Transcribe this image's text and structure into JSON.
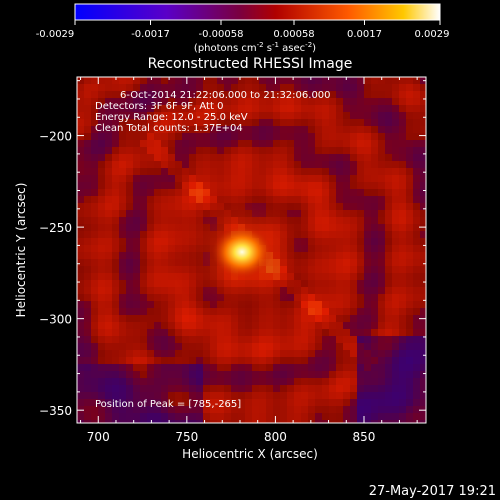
{
  "colorbar": {
    "ticks": [
      "-0.0029",
      "-0.0017",
      "-0.00058",
      "0.00058",
      "0.0017",
      "0.0029"
    ],
    "units_main": "(photons cm",
    "units_exp1": "-2",
    "units_mid": " s",
    "units_exp2": "-1",
    "units_tail": " asec",
    "units_exp3": "-2",
    "units_close": ")"
  },
  "chart_data": {
    "type": "heatmap",
    "title": "Reconstructed RHESSI Image",
    "xlabel": "Heliocentric X (arcsec)",
    "ylabel": "Heliocentric Y (arcsec)",
    "xlim": [
      688,
      885
    ],
    "ylim": [
      -357,
      -168
    ],
    "xticks": [
      700,
      750,
      800,
      850
    ],
    "yticks": [
      -200,
      -250,
      -300,
      -350
    ],
    "peak": {
      "x": 785,
      "y": -265
    },
    "color_range": [
      -0.0029,
      0.0029
    ],
    "colormap": "blue-purple-red-orange-yellow-white",
    "annotations": [
      "6-Oct-2014 21:22:06.000 to 21:32:06.000",
      "Detectors: 3F 6F 9F, Att 0",
      "Energy Range: 12.0 - 25.0 keV",
      "Clean     Total counts: 1.37E+04",
      "Position of Peak = [785,-265]"
    ]
  },
  "timestamp": "27-May-2017 19:21"
}
